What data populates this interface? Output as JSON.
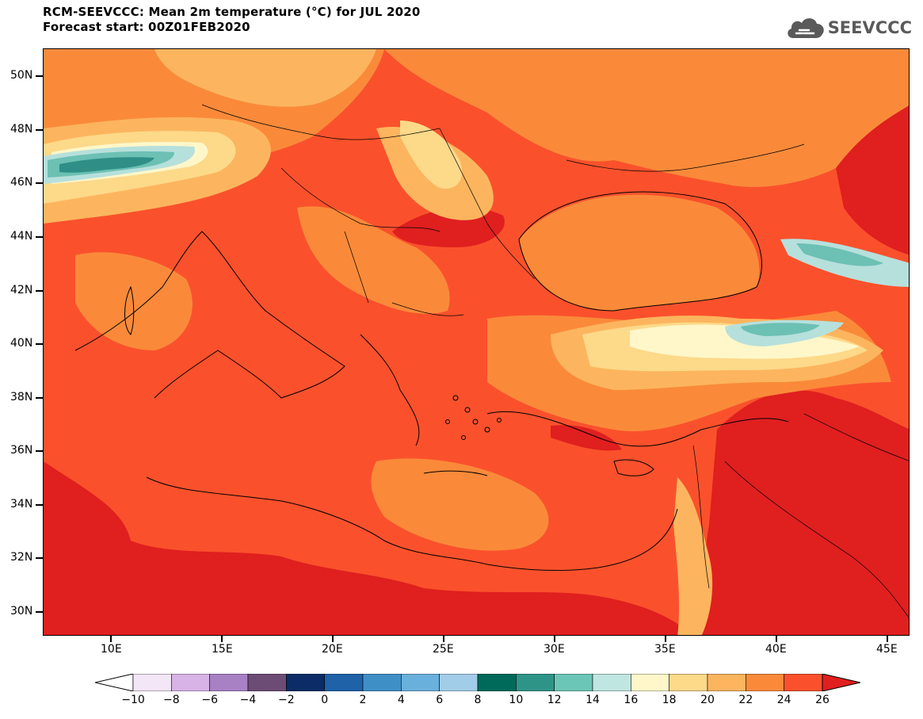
{
  "header": {
    "title_line1": "RCM-SEEVCCC: Mean 2m temperature (°C) for JUL 2020",
    "title_line2": "Forecast start: 00Z01FEB2020",
    "logo_text": "SEEVCCC",
    "logo_icon": "cloud-icon"
  },
  "map": {
    "lon_range": [
      7,
      46
    ],
    "lat_range": [
      29,
      51
    ],
    "lat_ticks": [
      "50N",
      "48N",
      "46N",
      "44N",
      "42N",
      "40N",
      "38N",
      "36N",
      "34N",
      "32N",
      "30N"
    ],
    "lon_ticks": [
      "10E",
      "15E",
      "20E",
      "25E",
      "30E",
      "35E",
      "40E",
      "45E"
    ],
    "colors": {
      "base_sea": "#fa512c",
      "hot": "#e01f1f",
      "warm": "#fa8a3a",
      "mild": "#fcb55e",
      "pale": "#fdd98a",
      "cream": "#fff7c9",
      "teal_light": "#b6e0dc",
      "teal": "#6cc0b4",
      "teal_dark": "#2f8f86"
    }
  },
  "colorbar": {
    "labels": [
      "−10",
      "−8",
      "−6",
      "−4",
      "−2",
      "0",
      "2",
      "4",
      "6",
      "8",
      "10",
      "12",
      "14",
      "16",
      "18",
      "20",
      "22",
      "24",
      "26"
    ],
    "left_arrow_color": "#ffffff",
    "colors": [
      "#f2e6f7",
      "#d8b3e6",
      "#a880c4",
      "#6c4c75",
      "#0b2c66",
      "#1f62a8",
      "#3f8fc7",
      "#6ab0dc",
      "#a2cde8",
      "#006a5a",
      "#2f9488",
      "#6cc6b8",
      "#bfe6e0",
      "#fff7c9",
      "#fdd98a",
      "#fcb55e",
      "#fa8a3a",
      "#fa512c"
    ],
    "right_arrow_color": "#e01f1f"
  }
}
